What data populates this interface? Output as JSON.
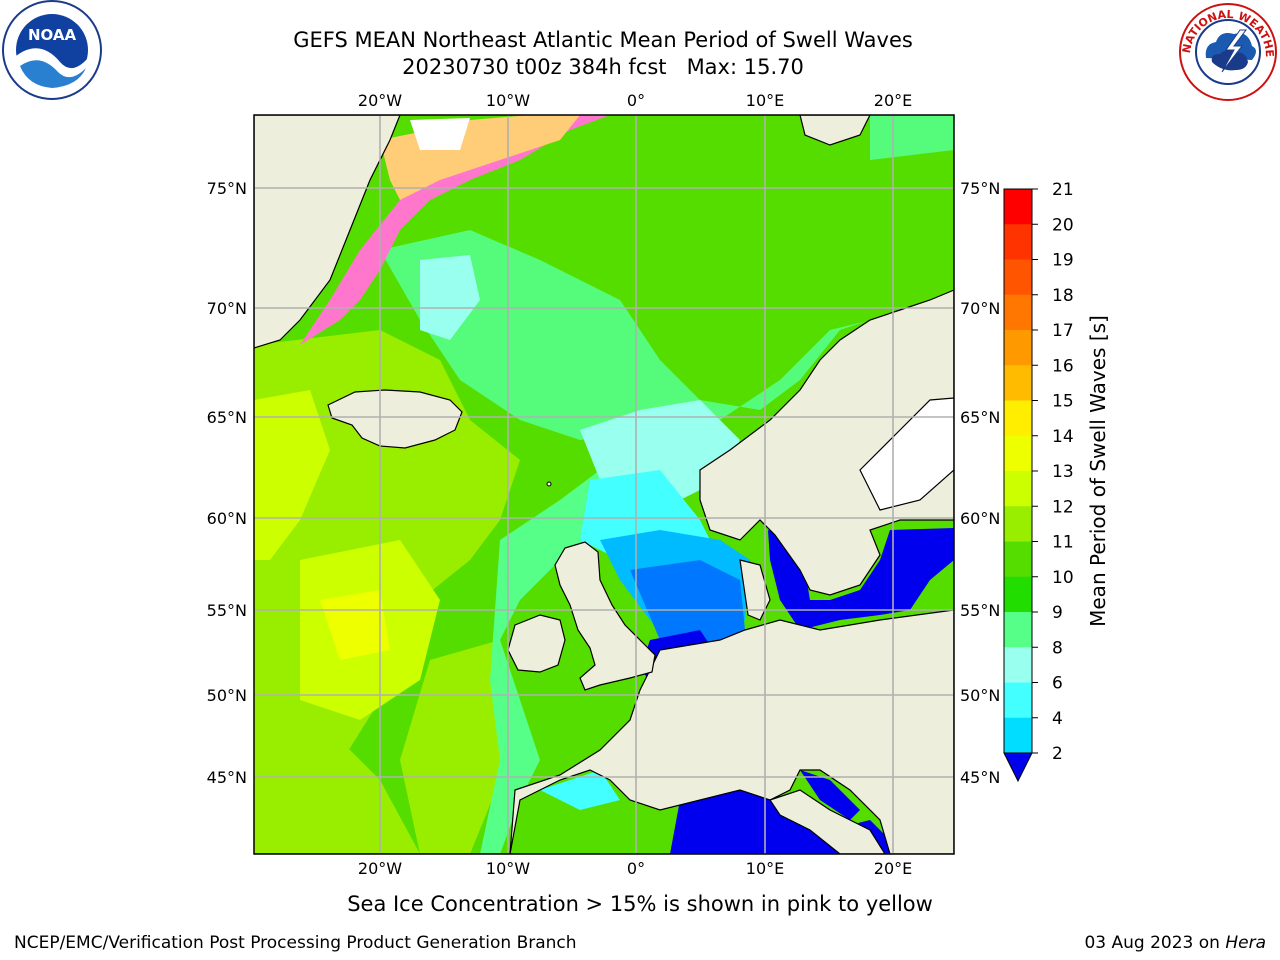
{
  "header": {
    "title_line1": "GEFS MEAN Northeast Atlantic Mean Period of Swell Waves",
    "title_line2": "20230730 t00z 384h fcst   Max: 15.70"
  },
  "map": {
    "top_lon_labels": [
      "20°W",
      "10°W",
      "0°",
      "10°E",
      "20°E"
    ],
    "bottom_lon_labels": [
      "20°W",
      "10°W",
      "0°",
      "10°E",
      "20°E"
    ],
    "left_lat_labels": [
      "75°N",
      "70°N",
      "65°N",
      "60°N",
      "55°N",
      "50°N",
      "45°N"
    ],
    "right_lat_labels": [
      "75°N",
      "70°N",
      "65°N",
      "60°N",
      "55°N",
      "50°N",
      "45°N"
    ],
    "land_color": "#eeeedd",
    "grid_color": "#b0b0b0"
  },
  "colorbar": {
    "label": "Mean Period of Swell Waves [s]",
    "ticks": [
      "21",
      "20",
      "19",
      "18",
      "17",
      "16",
      "15",
      "14",
      "13",
      "12",
      "11",
      "10",
      "9",
      "8",
      "6",
      "4",
      "2"
    ],
    "colors": [
      "#ff0000",
      "#ff3300",
      "#ff5500",
      "#ff7700",
      "#ff9900",
      "#ffbb00",
      "#ffee00",
      "#eeff00",
      "#ccff00",
      "#99ee00",
      "#55dd00",
      "#22dd00",
      "#55ff88",
      "#99ffee",
      "#44ffff",
      "#00ddff",
      "#00bbff",
      "#0077ff"
    ],
    "extend_color": "#0000ee"
  },
  "footer": {
    "ice_note": "Sea Ice Concentration > 15% is shown in pink to yellow",
    "left": "NCEP/EMC/Verification Post Processing Product Generation Branch",
    "right_date": "03 Aug 2023 on",
    "right_host": "Hera"
  },
  "logos": {
    "noaa": "NOAA",
    "nws_ring": "NATIONAL WEATHER SERVICE"
  }
}
